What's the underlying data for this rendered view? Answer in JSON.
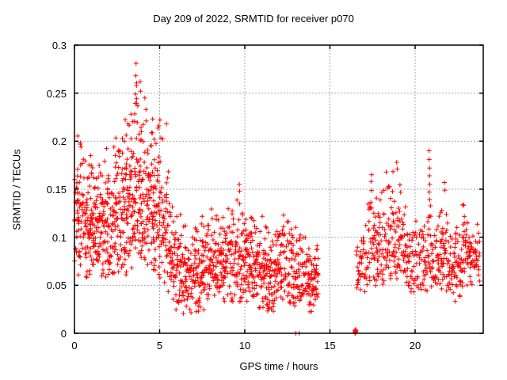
{
  "chart_data": {
    "type": "scatter",
    "title": "Day 209 of 2022, SRMTID for receiver p070",
    "xlabel": "GPS time / hours",
    "ylabel": "SRMTID / TECUs",
    "xlim": [
      0,
      24
    ],
    "ylim": [
      0,
      0.3
    ],
    "xticks": [
      0,
      5,
      10,
      15,
      20
    ],
    "xtick_labels": [
      "0",
      "5",
      "10",
      "15",
      "20"
    ],
    "yticks": [
      0,
      0.05,
      0.1,
      0.15,
      0.2,
      0.25,
      0.3
    ],
    "ytick_labels": [
      "0",
      "0.05",
      "0.1",
      "0.15",
      "0.2",
      "0.25",
      "0.3"
    ],
    "grid": "major-dashed",
    "legend": "none",
    "marker": "plus",
    "marker_color": "#ff0000",
    "marker_size_px": 7,
    "grid_color": "#a9a9a9",
    "axis_color": "#000000",
    "text_color": "#000000",
    "background": "#ffffff",
    "seed": 209,
    "domains": [
      [
        0,
        14.35
      ],
      [
        16.55,
        23.8
      ]
    ],
    "data_gaps": [
      [
        14.35,
        16.55
      ]
    ],
    "density_per_hour": [
      [
        0,
        115
      ],
      [
        2,
        120
      ],
      [
        3.5,
        130
      ],
      [
        5,
        115
      ],
      [
        5.5,
        100
      ],
      [
        6,
        90
      ],
      [
        8,
        95
      ],
      [
        12,
        95
      ],
      [
        14.3,
        85
      ],
      [
        16.55,
        55
      ],
      [
        17,
        75
      ],
      [
        18,
        85
      ],
      [
        19,
        80
      ],
      [
        20,
        70
      ],
      [
        20.8,
        70
      ],
      [
        21.5,
        75
      ],
      [
        22,
        85
      ],
      [
        23,
        85
      ],
      [
        23.8,
        65
      ]
    ],
    "envelope_t_lo_hi": [
      [
        0,
        0.06,
        0.215
      ],
      [
        0.5,
        0.05,
        0.21
      ],
      [
        1,
        0.045,
        0.195
      ],
      [
        1.5,
        0.05,
        0.2
      ],
      [
        2,
        0.05,
        0.21
      ],
      [
        2.5,
        0.055,
        0.225
      ],
      [
        3,
        0.06,
        0.245
      ],
      [
        3.3,
        0.065,
        0.26
      ],
      [
        3.6,
        0.07,
        0.285
      ],
      [
        3.9,
        0.07,
        0.265
      ],
      [
        4.2,
        0.065,
        0.255
      ],
      [
        4.6,
        0.06,
        0.23
      ],
      [
        5,
        0.05,
        0.225
      ],
      [
        5.4,
        0.04,
        0.22
      ],
      [
        5.7,
        0.03,
        0.16
      ],
      [
        6,
        0.02,
        0.14
      ],
      [
        6.5,
        0.02,
        0.13
      ],
      [
        7,
        0.015,
        0.12
      ],
      [
        7.5,
        0.02,
        0.125
      ],
      [
        8,
        0.025,
        0.13
      ],
      [
        8.5,
        0.03,
        0.135
      ],
      [
        9,
        0.03,
        0.14
      ],
      [
        9.7,
        0.02,
        0.155
      ],
      [
        10,
        0.03,
        0.135
      ],
      [
        10.5,
        0.03,
        0.135
      ],
      [
        11,
        0.025,
        0.125
      ],
      [
        11.5,
        0.02,
        0.115
      ],
      [
        12,
        0.025,
        0.13
      ],
      [
        12.5,
        0.03,
        0.13
      ],
      [
        13,
        0.02,
        0.125
      ],
      [
        13.5,
        0.02,
        0.115
      ],
      [
        14,
        0.02,
        0.105
      ],
      [
        14.35,
        0.03,
        0.095
      ],
      [
        16.55,
        0.04,
        0.1
      ],
      [
        16.8,
        0.04,
        0.13
      ],
      [
        17.2,
        0.04,
        0.145
      ],
      [
        17.5,
        0.05,
        0.168
      ],
      [
        17.8,
        0.045,
        0.155
      ],
      [
        18.1,
        0.04,
        0.168
      ],
      [
        18.45,
        0.05,
        0.17
      ],
      [
        18.9,
        0.05,
        0.18
      ],
      [
        19.2,
        0.045,
        0.165
      ],
      [
        19.5,
        0.04,
        0.14
      ],
      [
        19.8,
        0.035,
        0.12
      ],
      [
        20.2,
        0.04,
        0.125
      ],
      [
        20.6,
        0.04,
        0.13
      ],
      [
        20.85,
        0.04,
        0.155
      ],
      [
        21.1,
        0.04,
        0.12
      ],
      [
        21.45,
        0.04,
        0.13
      ],
      [
        21.75,
        0.04,
        0.158
      ],
      [
        22,
        0.03,
        0.125
      ],
      [
        22.3,
        0.03,
        0.12
      ],
      [
        22.6,
        0.035,
        0.135
      ],
      [
        22.9,
        0.04,
        0.138
      ],
      [
        23.2,
        0.045,
        0.13
      ],
      [
        23.5,
        0.05,
        0.125
      ],
      [
        23.8,
        0.05,
        0.115
      ]
    ],
    "highlight_points": [
      [
        3.62,
        0.281
      ],
      [
        3.6,
        0.268
      ],
      [
        3.64,
        0.258
      ],
      [
        3.58,
        0.249
      ],
      [
        3.86,
        0.262
      ],
      [
        3.88,
        0.252
      ],
      [
        5.02,
        0.222
      ],
      [
        5.4,
        0.218
      ],
      [
        9.68,
        0.155
      ],
      [
        9.7,
        0.148
      ],
      [
        17.45,
        0.165
      ],
      [
        17.42,
        0.158
      ],
      [
        18.3,
        0.168
      ],
      [
        18.92,
        0.178
      ],
      [
        18.95,
        0.171
      ],
      [
        20.82,
        0.19
      ],
      [
        20.83,
        0.181
      ],
      [
        20.85,
        0.172
      ],
      [
        20.84,
        0.164
      ],
      [
        20.86,
        0.155
      ],
      [
        20.83,
        0.147
      ],
      [
        20.85,
        0.139
      ],
      [
        21.72,
        0.157
      ],
      [
        21.75,
        0.149
      ],
      [
        13.0,
        0
      ],
      [
        13.2,
        0
      ],
      [
        16.46,
        0.001
      ],
      [
        16.47,
        0.003
      ],
      [
        16.48,
        0
      ],
      [
        16.49,
        0.002
      ],
      [
        16.5,
        0.004
      ],
      [
        16.51,
        0.001
      ],
      [
        16.52,
        0.003
      ],
      [
        16.53,
        0.002
      ]
    ]
  }
}
